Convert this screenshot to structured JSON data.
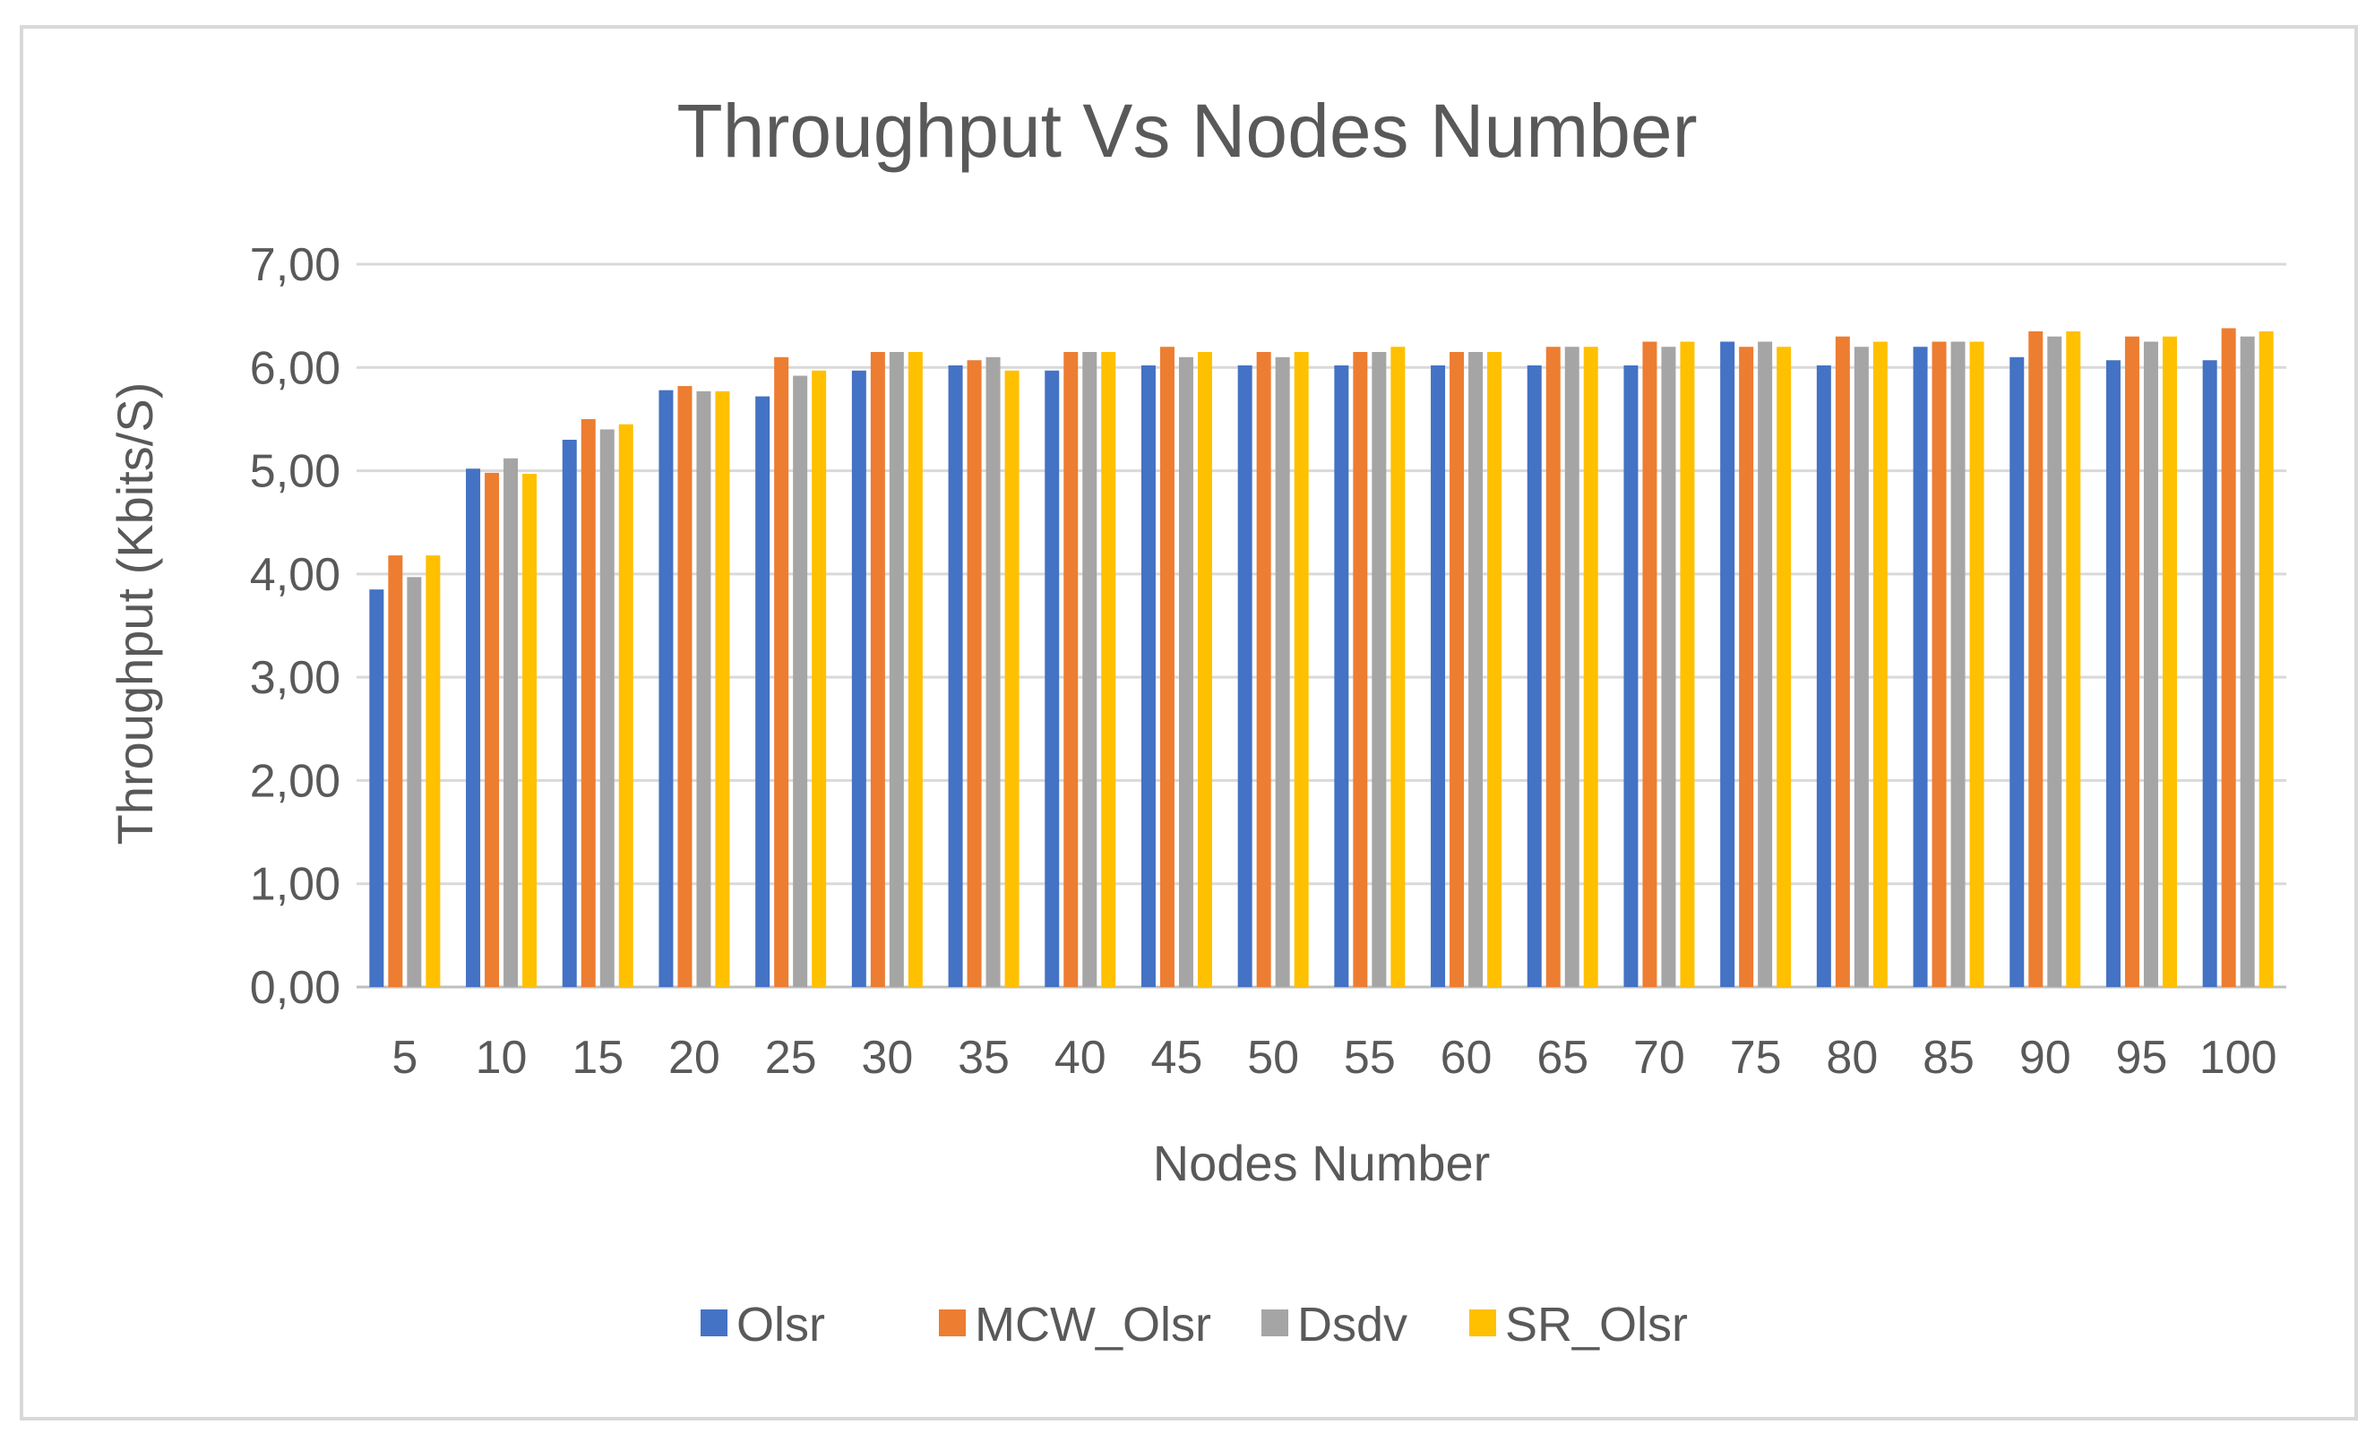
{
  "chart_data": {
    "type": "bar",
    "title": "Throughput Vs Nodes Number",
    "xlabel": "Nodes Number",
    "ylabel": "Throughput (Kbits/S)",
    "ylim": [
      0,
      7
    ],
    "yticks": [
      "0,00",
      "1,00",
      "2,00",
      "3,00",
      "4,00",
      "5,00",
      "6,00",
      "7,00"
    ],
    "grid": true,
    "legend_position": "bottom",
    "categories": [
      "5",
      "10",
      "15",
      "20",
      "25",
      "30",
      "35",
      "40",
      "45",
      "50",
      "55",
      "60",
      "65",
      "70",
      "75",
      "80",
      "85",
      "90",
      "95",
      "100"
    ],
    "series": [
      {
        "name": "Olsr",
        "color": "#4472c4",
        "values": [
          3.85,
          5.02,
          5.3,
          5.78,
          5.72,
          5.97,
          6.02,
          5.97,
          6.02,
          6.02,
          6.02,
          6.02,
          6.02,
          6.02,
          6.25,
          6.02,
          6.2,
          6.1,
          6.07,
          6.07
        ]
      },
      {
        "name": "MCW_Olsr",
        "color": "#ed7d31",
        "values": [
          4.18,
          4.98,
          5.5,
          5.82,
          6.1,
          6.15,
          6.07,
          6.15,
          6.2,
          6.15,
          6.15,
          6.15,
          6.2,
          6.25,
          6.2,
          6.3,
          6.25,
          6.35,
          6.3,
          6.38
        ]
      },
      {
        "name": "Dsdv",
        "color": "#a5a5a5",
        "values": [
          3.97,
          5.12,
          5.4,
          5.77,
          5.92,
          6.15,
          6.1,
          6.15,
          6.1,
          6.1,
          6.15,
          6.15,
          6.2,
          6.2,
          6.25,
          6.2,
          6.25,
          6.3,
          6.25,
          6.3
        ]
      },
      {
        "name": "SR_Olsr",
        "color": "#ffc000",
        "values": [
          4.18,
          4.97,
          5.45,
          5.77,
          5.97,
          6.15,
          5.97,
          6.15,
          6.15,
          6.15,
          6.2,
          6.15,
          6.2,
          6.25,
          6.2,
          6.25,
          6.25,
          6.35,
          6.3,
          6.35
        ]
      }
    ]
  }
}
